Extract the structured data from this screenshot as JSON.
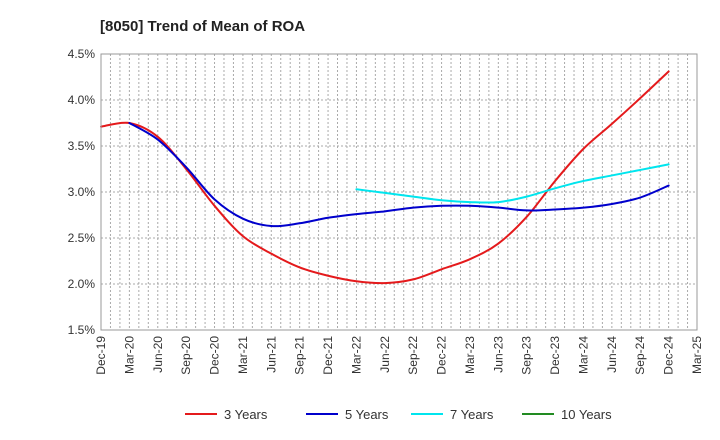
{
  "chart_data": {
    "type": "line",
    "title": "[8050]  Trend of Mean of ROA",
    "xlabel": "",
    "ylabel": "",
    "categories": [
      "Dec-19",
      "Mar-20",
      "Jun-20",
      "Sep-20",
      "Dec-20",
      "Mar-21",
      "Jun-21",
      "Sep-21",
      "Dec-21",
      "Mar-22",
      "Jun-22",
      "Sep-22",
      "Dec-22",
      "Mar-23",
      "Jun-23",
      "Sep-23",
      "Dec-23",
      "Mar-24",
      "Jun-24",
      "Sep-24",
      "Dec-24",
      "Mar-25"
    ],
    "y_ticks": [
      "1.5%",
      "2.0%",
      "2.5%",
      "3.0%",
      "3.5%",
      "4.0%",
      "4.5%"
    ],
    "ylim": [
      1.5,
      4.5
    ],
    "grid": true,
    "legend_position": "bottom",
    "series": [
      {
        "name": "3 Years",
        "color": "#e41a1c",
        "values": [
          3.71,
          3.75,
          3.6,
          3.25,
          2.85,
          2.52,
          2.33,
          2.18,
          2.09,
          2.03,
          2.01,
          2.05,
          2.16,
          2.27,
          2.44,
          2.73,
          3.12,
          3.47,
          3.74,
          4.02,
          4.31,
          null
        ]
      },
      {
        "name": "5 Years",
        "color": "#0000cc",
        "values": [
          null,
          3.75,
          3.57,
          3.27,
          2.92,
          2.71,
          2.63,
          2.66,
          2.72,
          2.76,
          2.79,
          2.83,
          2.85,
          2.85,
          2.83,
          2.8,
          2.81,
          2.83,
          2.87,
          2.94,
          3.07,
          null
        ]
      },
      {
        "name": "7 Years",
        "color": "#00e5ee",
        "values": [
          null,
          null,
          null,
          null,
          null,
          null,
          null,
          null,
          null,
          3.03,
          2.99,
          2.95,
          2.91,
          2.89,
          2.89,
          2.95,
          3.04,
          3.12,
          3.18,
          3.24,
          3.3,
          null
        ]
      },
      {
        "name": "10 Years",
        "color": "#228b22",
        "values": [
          null,
          null,
          null,
          null,
          null,
          null,
          null,
          null,
          null,
          null,
          null,
          null,
          null,
          null,
          null,
          null,
          null,
          null,
          null,
          null,
          null,
          null
        ]
      }
    ]
  }
}
